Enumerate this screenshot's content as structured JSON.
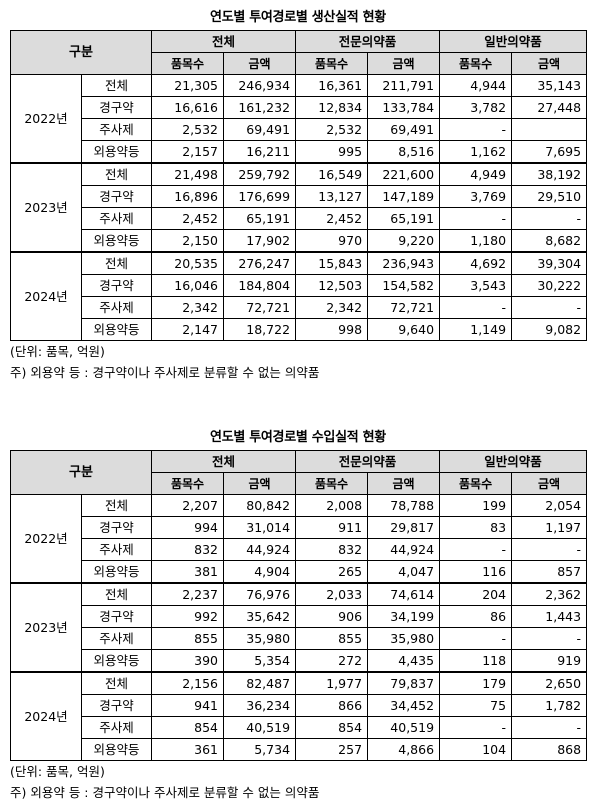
{
  "columns": {
    "gubun": "구분",
    "groups": [
      "전체",
      "전문의약품",
      "일반의약품"
    ],
    "sub": [
      "품목수",
      "금액"
    ]
  },
  "tables": [
    {
      "title": "연도별 투여경로별 생산실적 현황",
      "years": [
        {
          "year": "2022년",
          "rows": [
            {
              "cat": "전체",
              "v": [
                "21,305",
                "246,934",
                "16,361",
                "211,791",
                "4,944",
                "35,143"
              ]
            },
            {
              "cat": "경구약",
              "v": [
                "16,616",
                "161,232",
                "12,834",
                "133,784",
                "3,782",
                "27,448"
              ]
            },
            {
              "cat": "주사제",
              "v": [
                "2,532",
                "69,491",
                "2,532",
                "69,491",
                "-",
                ""
              ]
            },
            {
              "cat": "외용약등",
              "v": [
                "2,157",
                "16,211",
                "995",
                "8,516",
                "1,162",
                "7,695"
              ]
            }
          ]
        },
        {
          "year": "2023년",
          "rows": [
            {
              "cat": "전체",
              "v": [
                "21,498",
                "259,792",
                "16,549",
                "221,600",
                "4,949",
                "38,192"
              ]
            },
            {
              "cat": "경구약",
              "v": [
                "16,896",
                "176,699",
                "13,127",
                "147,189",
                "3,769",
                "29,510"
              ]
            },
            {
              "cat": "주사제",
              "v": [
                "2,452",
                "65,191",
                "2,452",
                "65,191",
                "-",
                "-"
              ]
            },
            {
              "cat": "외용약등",
              "v": [
                "2,150",
                "17,902",
                "970",
                "9,220",
                "1,180",
                "8,682"
              ]
            }
          ]
        },
        {
          "year": "2024년",
          "rows": [
            {
              "cat": "전체",
              "v": [
                "20,535",
                "276,247",
                "15,843",
                "236,943",
                "4,692",
                "39,304"
              ]
            },
            {
              "cat": "경구약",
              "v": [
                "16,046",
                "184,804",
                "12,503",
                "154,582",
                "3,543",
                "30,222"
              ]
            },
            {
              "cat": "주사제",
              "v": [
                "2,342",
                "72,721",
                "2,342",
                "72,721",
                "-",
                "-"
              ]
            },
            {
              "cat": "외용약등",
              "v": [
                "2,147",
                "18,722",
                "998",
                "9,640",
                "1,149",
                "9,082"
              ]
            }
          ]
        }
      ],
      "unit": "(단위: 품목, 억원)",
      "footnote": "주) 외용약 등 : 경구약이나 주사제로 분류할 수 없는 의약품"
    },
    {
      "title": "연도별 투여경로별 수입실적 현황",
      "years": [
        {
          "year": "2022년",
          "rows": [
            {
              "cat": "전체",
              "v": [
                "2,207",
                "80,842",
                "2,008",
                "78,788",
                "199",
                "2,054"
              ]
            },
            {
              "cat": "경구약",
              "v": [
                "994",
                "31,014",
                "911",
                "29,817",
                "83",
                "1,197"
              ]
            },
            {
              "cat": "주사제",
              "v": [
                "832",
                "44,924",
                "832",
                "44,924",
                "-",
                "-"
              ]
            },
            {
              "cat": "외용약등",
              "v": [
                "381",
                "4,904",
                "265",
                "4,047",
                "116",
                "857"
              ]
            }
          ]
        },
        {
          "year": "2023년",
          "rows": [
            {
              "cat": "전체",
              "v": [
                "2,237",
                "76,976",
                "2,033",
                "74,614",
                "204",
                "2,362"
              ]
            },
            {
              "cat": "경구약",
              "v": [
                "992",
                "35,642",
                "906",
                "34,199",
                "86",
                "1,443"
              ]
            },
            {
              "cat": "주사제",
              "v": [
                "855",
                "35,980",
                "855",
                "35,980",
                "-",
                "-"
              ]
            },
            {
              "cat": "외용약등",
              "v": [
                "390",
                "5,354",
                "272",
                "4,435",
                "118",
                "919"
              ]
            }
          ]
        },
        {
          "year": "2024년",
          "rows": [
            {
              "cat": "전체",
              "v": [
                "2,156",
                "82,487",
                "1,977",
                "79,837",
                "179",
                "2,650"
              ]
            },
            {
              "cat": "경구약",
              "v": [
                "941",
                "36,234",
                "866",
                "34,452",
                "75",
                "1,782"
              ]
            },
            {
              "cat": "주사제",
              "v": [
                "854",
                "40,519",
                "854",
                "40,519",
                "-",
                "-"
              ]
            },
            {
              "cat": "외용약등",
              "v": [
                "361",
                "5,734",
                "257",
                "4,866",
                "104",
                "868"
              ]
            }
          ]
        }
      ],
      "unit": "(단위: 품목, 억원)",
      "footnote": "주) 외용약 등 : 경구약이나 주사제로 분류할 수 없는 의약품"
    }
  ]
}
